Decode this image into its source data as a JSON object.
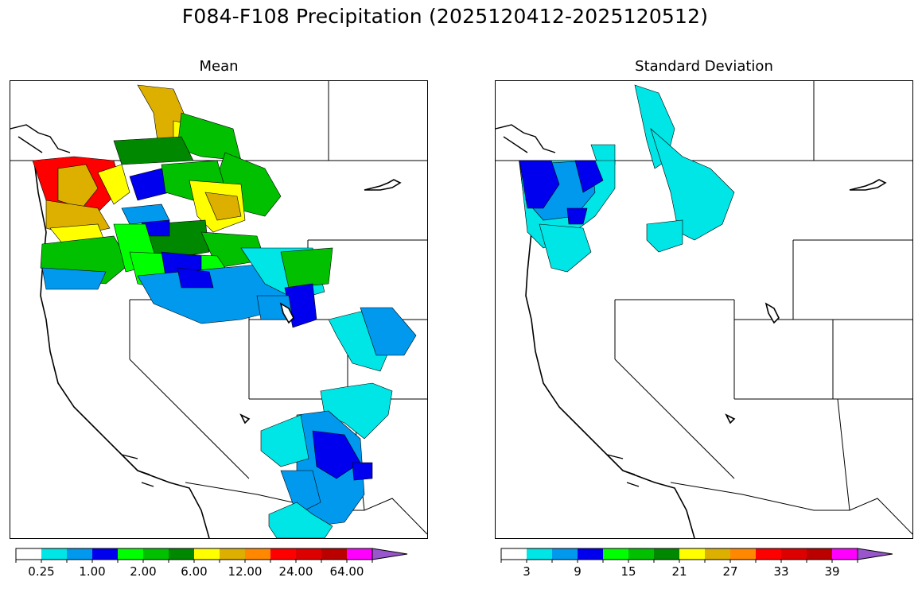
{
  "title": "F084-F108 Precipitation (2025120412-2025120512)",
  "panels": [
    {
      "title": "Mean",
      "colorbar": {
        "colors": [
          "#ffffff",
          "#00e5e5",
          "#0099ee",
          "#0000ee",
          "#00ff00",
          "#00c000",
          "#008800",
          "#ffff00",
          "#ddb000",
          "#ff8800",
          "#ff0000",
          "#dd0000",
          "#bb0000",
          "#ff00ff",
          "#9955cc"
        ],
        "tick_labels": [
          "0.25",
          "1.00",
          "2.00",
          "6.00",
          "12.00",
          "24.00",
          "64.00"
        ],
        "extend": "max"
      }
    },
    {
      "title": "Standard Deviation",
      "colorbar": {
        "colors": [
          "#ffffff",
          "#00e5e5",
          "#0099ee",
          "#0000ee",
          "#00ff00",
          "#00c000",
          "#008800",
          "#ffff00",
          "#ddb000",
          "#ff8800",
          "#ff0000",
          "#dd0000",
          "#bb0000",
          "#ff00ff",
          "#9955cc"
        ],
        "tick_labels": [
          "3",
          "9",
          "15",
          "21",
          "27",
          "33",
          "39"
        ],
        "extend": "max"
      }
    }
  ]
}
